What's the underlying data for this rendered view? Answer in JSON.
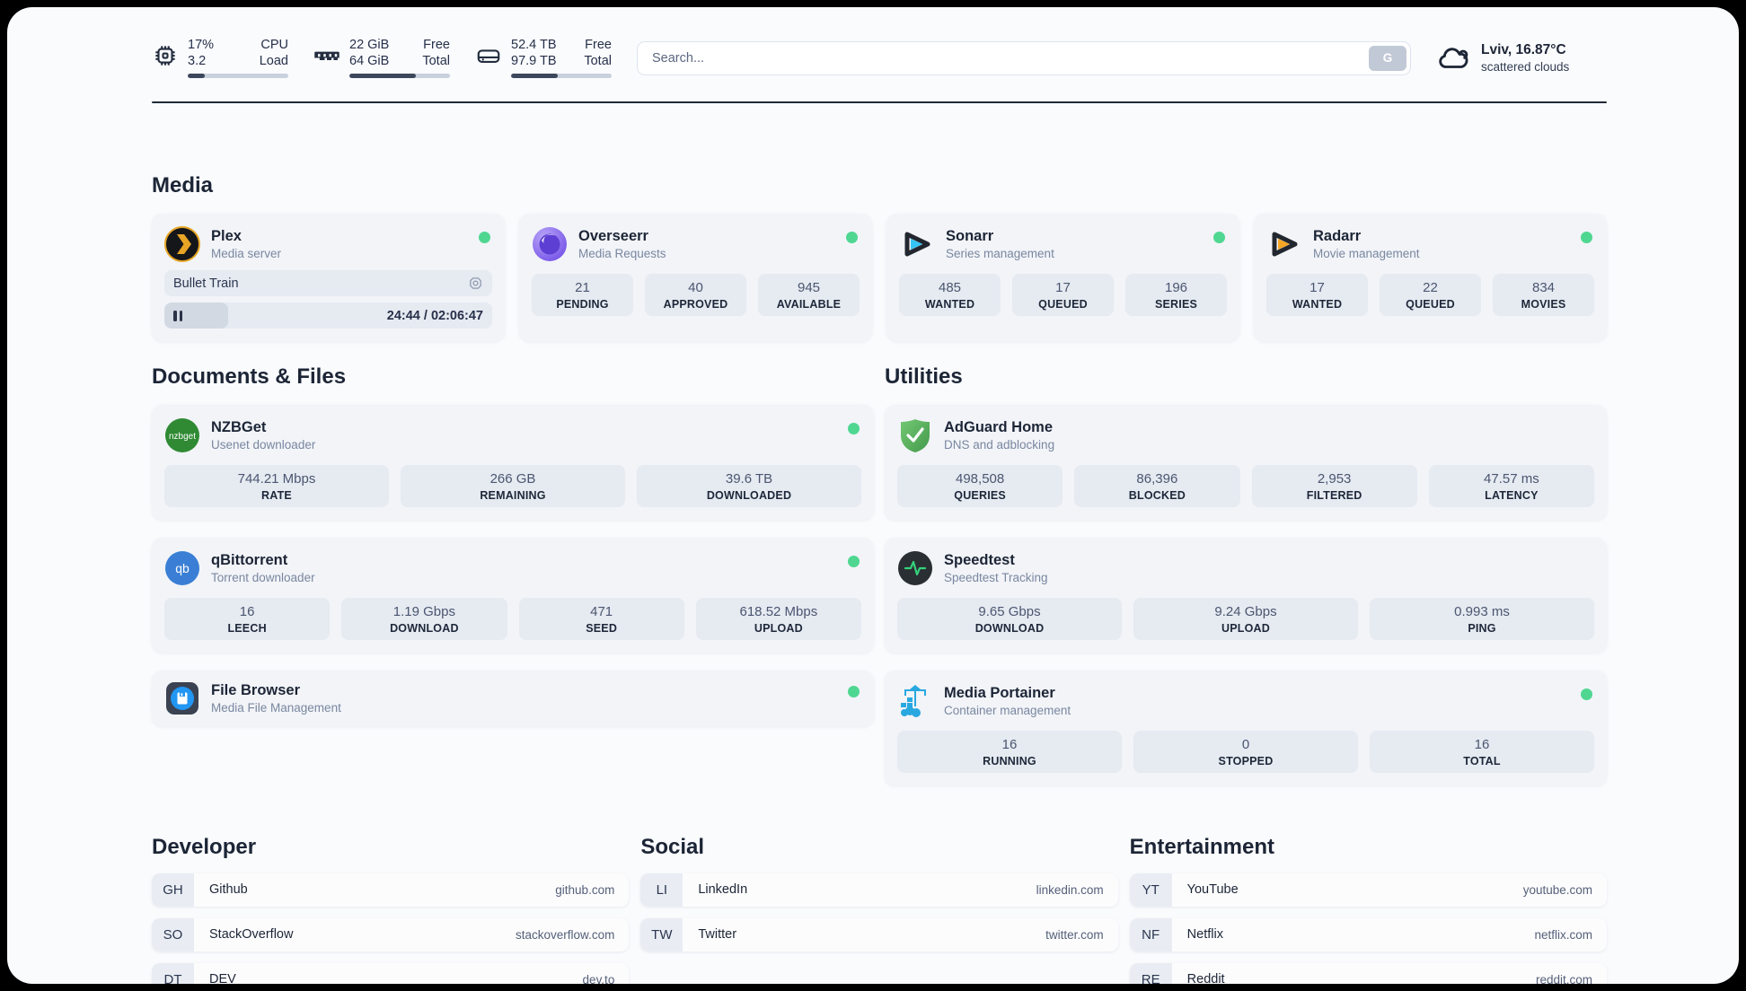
{
  "colors": {
    "accent_green": "#4fd791",
    "dark_navy": "#1c2536",
    "muted_gray": "#7a87a0",
    "card_bg": "#f2f4f8",
    "stat_bg": "#e6eaf1",
    "progress_fill": "#3c475c"
  },
  "header": {
    "metrics": [
      {
        "name": "cpu",
        "value_top": "17%",
        "value_bottom": "3.2",
        "label_top": "CPU",
        "label_bottom": "Load",
        "progress_pct": 17
      },
      {
        "name": "ram",
        "value_top": "22 GiB",
        "value_bottom": "64 GiB",
        "label_top": "Free",
        "label_bottom": "Total",
        "progress_pct": 66
      },
      {
        "name": "disk",
        "value_top": "52.4 TB",
        "value_bottom": "97.9 TB",
        "label_top": "Free",
        "label_bottom": "Total",
        "progress_pct": 46
      }
    ],
    "search": {
      "placeholder": "Search...",
      "button_label": "G"
    },
    "weather": {
      "location_temp": "Lviv, 16.87°C",
      "condition": "scattered clouds"
    }
  },
  "sections": {
    "media": {
      "title": "Media",
      "plex": {
        "title": "Plex",
        "subtitle": "Media server",
        "online": true,
        "now_playing": "Bullet Train",
        "time_display": "24:44 / 02:06:47",
        "progress_pct": 19.5
      },
      "cards": [
        {
          "title": "Overseerr",
          "subtitle": "Media Requests",
          "online": true,
          "stats": [
            {
              "value": "21",
              "label": "PENDING"
            },
            {
              "value": "40",
              "label": "APPROVED"
            },
            {
              "value": "945",
              "label": "AVAILABLE"
            }
          ]
        },
        {
          "title": "Sonarr",
          "subtitle": "Series management",
          "online": true,
          "stats": [
            {
              "value": "485",
              "label": "WANTED"
            },
            {
              "value": "17",
              "label": "QUEUED"
            },
            {
              "value": "196",
              "label": "SERIES"
            }
          ]
        },
        {
          "title": "Radarr",
          "subtitle": "Movie management",
          "online": true,
          "stats": [
            {
              "value": "17",
              "label": "WANTED"
            },
            {
              "value": "22",
              "label": "QUEUED"
            },
            {
              "value": "834",
              "label": "MOVIES"
            }
          ]
        }
      ]
    },
    "documents": {
      "title": "Documents & Files",
      "cards": [
        {
          "title": "NZBGet",
          "subtitle": "Usenet downloader",
          "online": true,
          "stats": [
            {
              "value": "744.21 Mbps",
              "label": "RATE"
            },
            {
              "value": "266 GB",
              "label": "REMAINING"
            },
            {
              "value": "39.6 TB",
              "label": "DOWNLOADED"
            }
          ]
        },
        {
          "title": "qBittorrent",
          "subtitle": "Torrent downloader",
          "online": true,
          "stats": [
            {
              "value": "16",
              "label": "LEECH"
            },
            {
              "value": "1.19 Gbps",
              "label": "DOWNLOAD"
            },
            {
              "value": "471",
              "label": "SEED"
            },
            {
              "value": "618.52 Mbps",
              "label": "UPLOAD"
            }
          ]
        },
        {
          "title": "File Browser",
          "subtitle": "Media File Management",
          "online": true,
          "stats": []
        }
      ]
    },
    "utilities": {
      "title": "Utilities",
      "cards": [
        {
          "title": "AdGuard Home",
          "subtitle": "DNS and adblocking",
          "online": false,
          "stats": [
            {
              "value": "498,508",
              "label": "QUERIES"
            },
            {
              "value": "86,396",
              "label": "BLOCKED"
            },
            {
              "value": "2,953",
              "label": "FILTERED"
            },
            {
              "value": "47.57 ms",
              "label": "LATENCY"
            }
          ]
        },
        {
          "title": "Speedtest",
          "subtitle": "Speedtest Tracking",
          "online": false,
          "stats": [
            {
              "value": "9.65 Gbps",
              "label": "DOWNLOAD"
            },
            {
              "value": "9.24 Gbps",
              "label": "UPLOAD"
            },
            {
              "value": "0.993 ms",
              "label": "PING"
            }
          ]
        },
        {
          "title": "Media Portainer",
          "subtitle": "Container management",
          "online": true,
          "stats": [
            {
              "value": "16",
              "label": "RUNNING"
            },
            {
              "value": "0",
              "label": "STOPPED"
            },
            {
              "value": "16",
              "label": "TOTAL"
            }
          ]
        }
      ]
    },
    "developer": {
      "title": "Developer",
      "links": [
        {
          "abbr": "GH",
          "label": "Github",
          "url": "github.com"
        },
        {
          "abbr": "SO",
          "label": "StackOverflow",
          "url": "stackoverflow.com"
        },
        {
          "abbr": "DT",
          "label": "DEV",
          "url": "dev.to"
        }
      ]
    },
    "social": {
      "title": "Social",
      "links": [
        {
          "abbr": "LI",
          "label": "LinkedIn",
          "url": "linkedin.com"
        },
        {
          "abbr": "TW",
          "label": "Twitter",
          "url": "twitter.com"
        }
      ]
    },
    "entertainment": {
      "title": "Entertainment",
      "links": [
        {
          "abbr": "YT",
          "label": "YouTube",
          "url": "youtube.com"
        },
        {
          "abbr": "NF",
          "label": "Netflix",
          "url": "netflix.com"
        },
        {
          "abbr": "RE",
          "label": "Reddit",
          "url": "reddit.com"
        }
      ]
    }
  }
}
